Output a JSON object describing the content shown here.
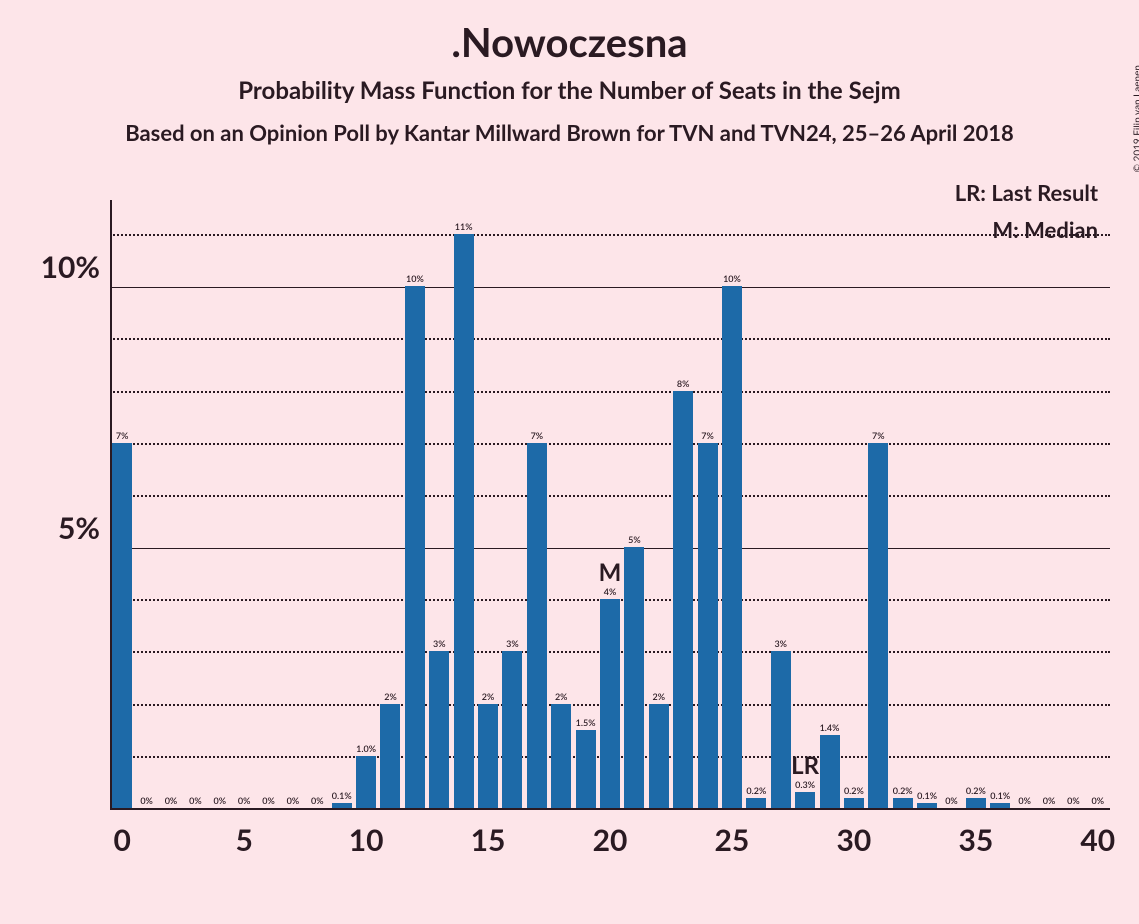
{
  "title": ".Nowoczesna",
  "subtitle": "Probability Mass Function for the Number of Seats in the Sejm",
  "source": "Based on an Opinion Poll by Kantar Millward Brown for TVN and TVN24, 25–26 April 2018",
  "copyright": "© 2019 Filip van Laenen",
  "legend_lr": "LR: Last Result",
  "legend_m": "M: Median",
  "chart": {
    "type": "bar",
    "bar_color": "#1d6aa8",
    "background_color": "#fde5e9",
    "text_color": "#2a1a22",
    "y_major_ticks": [
      5,
      10
    ],
    "y_minor_step": 1,
    "y_max": 11.5,
    "x_ticks": [
      0,
      5,
      10,
      15,
      20,
      25,
      30,
      35,
      40
    ],
    "x_min": 0,
    "x_max": 40,
    "bar_width_ratio": 0.82,
    "title_fontsize": 40,
    "subtitle_fontsize": 24,
    "axis_label_fontsize": 30,
    "bar_label_fontsize": 9,
    "median_x": 20,
    "median_label": "M",
    "lr_x": 28,
    "lr_label": "LR",
    "bars": [
      {
        "x": 0,
        "v": 7,
        "label": "7%"
      },
      {
        "x": 1,
        "v": 0,
        "label": "0%"
      },
      {
        "x": 2,
        "v": 0,
        "label": "0%"
      },
      {
        "x": 3,
        "v": 0,
        "label": "0%"
      },
      {
        "x": 4,
        "v": 0,
        "label": "0%"
      },
      {
        "x": 5,
        "v": 0,
        "label": "0%"
      },
      {
        "x": 6,
        "v": 0,
        "label": "0%"
      },
      {
        "x": 7,
        "v": 0,
        "label": "0%"
      },
      {
        "x": 8,
        "v": 0,
        "label": "0%"
      },
      {
        "x": 9,
        "v": 0.1,
        "label": "0.1%"
      },
      {
        "x": 10,
        "v": 1.0,
        "label": "1.0%"
      },
      {
        "x": 11,
        "v": 2,
        "label": "2%"
      },
      {
        "x": 12,
        "v": 10,
        "label": "10%"
      },
      {
        "x": 13,
        "v": 3,
        "label": "3%"
      },
      {
        "x": 14,
        "v": 11,
        "label": "11%"
      },
      {
        "x": 15,
        "v": 2,
        "label": "2%"
      },
      {
        "x": 16,
        "v": 3,
        "label": "3%"
      },
      {
        "x": 17,
        "v": 7,
        "label": "7%"
      },
      {
        "x": 18,
        "v": 2,
        "label": "2%"
      },
      {
        "x": 19,
        "v": 1.5,
        "label": "1.5%"
      },
      {
        "x": 20,
        "v": 4,
        "label": "4%"
      },
      {
        "x": 21,
        "v": 5,
        "label": "5%"
      },
      {
        "x": 22,
        "v": 2,
        "label": "2%"
      },
      {
        "x": 23,
        "v": 8,
        "label": "8%"
      },
      {
        "x": 24,
        "v": 7,
        "label": "7%"
      },
      {
        "x": 25,
        "v": 10,
        "label": "10%"
      },
      {
        "x": 26,
        "v": 0.2,
        "label": "0.2%"
      },
      {
        "x": 27,
        "v": 3,
        "label": "3%"
      },
      {
        "x": 28,
        "v": 0.3,
        "label": "0.3%"
      },
      {
        "x": 29,
        "v": 1.4,
        "label": "1.4%"
      },
      {
        "x": 30,
        "v": 0.2,
        "label": "0.2%"
      },
      {
        "x": 31,
        "v": 7,
        "label": "7%"
      },
      {
        "x": 32,
        "v": 0.2,
        "label": "0.2%"
      },
      {
        "x": 33,
        "v": 0.1,
        "label": "0.1%"
      },
      {
        "x": 34,
        "v": 0,
        "label": "0%"
      },
      {
        "x": 35,
        "v": 0.2,
        "label": "0.2%"
      },
      {
        "x": 36,
        "v": 0.1,
        "label": "0.1%"
      },
      {
        "x": 37,
        "v": 0,
        "label": "0%"
      },
      {
        "x": 38,
        "v": 0,
        "label": "0%"
      },
      {
        "x": 39,
        "v": 0,
        "label": "0%"
      },
      {
        "x": 40,
        "v": 0,
        "label": "0%"
      }
    ]
  }
}
